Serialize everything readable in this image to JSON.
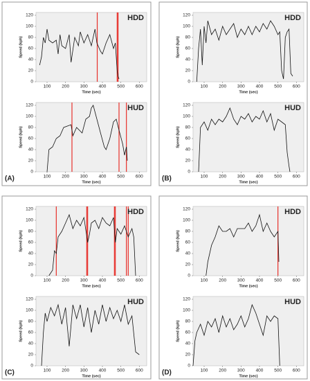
{
  "panel_labels": [
    "(A)",
    "(B)",
    "(C)",
    "(D)"
  ],
  "chart_data": [
    {
      "type": "line",
      "title": "HDD",
      "xlabel": "Time (sec)",
      "ylabel": "Speed (kph)",
      "color": "#111111",
      "vline_color": "#e8302a",
      "x": [
        60,
        70,
        80,
        90,
        100,
        110,
        130,
        150,
        160,
        170,
        180,
        200,
        220,
        230,
        250,
        270,
        280,
        300,
        320,
        340,
        360,
        370,
        390,
        400,
        420,
        440,
        460,
        470,
        480,
        485,
        490
      ],
      "values": [
        30,
        45,
        80,
        70,
        95,
        75,
        70,
        75,
        50,
        85,
        65,
        60,
        85,
        35,
        80,
        65,
        90,
        70,
        85,
        65,
        95,
        70,
        55,
        50,
        70,
        85,
        60,
        70,
        20,
        10,
        5
      ],
      "vlines": [
        372,
        480,
        485
      ],
      "xlim": [
        40,
        640
      ],
      "ylim": [
        0,
        125
      ],
      "xticks": [
        100,
        200,
        300,
        400,
        500,
        600
      ],
      "yticks": [
        0,
        20,
        40,
        60,
        80,
        100,
        120
      ]
    },
    {
      "type": "line",
      "title": "HUD",
      "xlabel": "Time (sec)",
      "ylabel": "Speed (kph)",
      "color": "#111111",
      "vline_color": "#e8302a",
      "x": [
        100,
        110,
        130,
        150,
        170,
        190,
        230,
        240,
        260,
        290,
        310,
        330,
        340,
        350,
        370,
        390,
        410,
        420,
        440,
        460,
        475,
        490,
        510,
        520,
        530,
        535
      ],
      "values": [
        0,
        40,
        45,
        60,
        65,
        80,
        85,
        65,
        80,
        70,
        95,
        100,
        115,
        120,
        95,
        70,
        45,
        40,
        60,
        90,
        95,
        75,
        50,
        30,
        45,
        20
      ],
      "vlines": [
        235,
        490,
        530
      ],
      "xlim": [
        40,
        640
      ],
      "ylim": [
        0,
        125
      ],
      "xticks": [
        100,
        200,
        300,
        400,
        500,
        600
      ],
      "yticks": [
        0,
        20,
        40,
        60,
        80,
        100,
        120
      ]
    },
    {
      "type": "line",
      "title": "HDD",
      "xlabel": "Time (sec)",
      "ylabel": "Speed (kph)",
      "color": "#111111",
      "vline_color": "#e8302a",
      "x": [
        60,
        70,
        80,
        90,
        100,
        110,
        120,
        140,
        160,
        180,
        200,
        220,
        240,
        260,
        280,
        300,
        320,
        340,
        360,
        380,
        400,
        420,
        440,
        460,
        480,
        500,
        510,
        520,
        530,
        540,
        550,
        560,
        570,
        580
      ],
      "values": [
        0,
        60,
        95,
        30,
        100,
        70,
        110,
        85,
        95,
        75,
        100,
        85,
        95,
        105,
        80,
        95,
        85,
        100,
        85,
        100,
        90,
        105,
        95,
        110,
        100,
        85,
        90,
        20,
        5,
        80,
        90,
        95,
        15,
        10
      ],
      "vlines": [],
      "xlim": [
        40,
        640
      ],
      "ylim": [
        0,
        125
      ],
      "xticks": [
        100,
        200,
        300,
        400,
        500,
        600
      ],
      "yticks": [
        0,
        20,
        40,
        60,
        80,
        100,
        120
      ]
    },
    {
      "type": "line",
      "title": "HUD",
      "xlabel": "Time (sec)",
      "ylabel": "Speed (kph)",
      "color": "#111111",
      "vline_color": "#e8302a",
      "x": [
        70,
        80,
        100,
        120,
        140,
        160,
        180,
        200,
        220,
        240,
        260,
        280,
        300,
        320,
        340,
        360,
        380,
        400,
        420,
        440,
        460,
        480,
        500,
        520,
        540,
        550,
        560,
        565
      ],
      "values": [
        0,
        80,
        90,
        75,
        95,
        85,
        95,
        90,
        100,
        115,
        95,
        85,
        100,
        95,
        105,
        90,
        100,
        95,
        110,
        90,
        105,
        75,
        95,
        90,
        85,
        35,
        10,
        0
      ],
      "vlines": [],
      "xlim": [
        40,
        640
      ],
      "ylim": [
        0,
        125
      ],
      "xticks": [
        100,
        200,
        300,
        400,
        500,
        600
      ],
      "yticks": [
        0,
        20,
        40,
        60,
        80,
        100,
        120
      ]
    },
    {
      "type": "line",
      "title": "HDD",
      "xlabel": "Time (sec)",
      "ylabel": "Speed (kph)",
      "color": "#111111",
      "vline_color": "#e8302a",
      "x": [
        110,
        120,
        130,
        140,
        150,
        160,
        180,
        200,
        220,
        240,
        260,
        280,
        300,
        320,
        330,
        340,
        360,
        380,
        400,
        420,
        440,
        460,
        470,
        480,
        500,
        520,
        540,
        560,
        570,
        580
      ],
      "values": [
        0,
        5,
        10,
        45,
        40,
        70,
        80,
        95,
        110,
        85,
        100,
        90,
        105,
        60,
        75,
        95,
        100,
        85,
        105,
        95,
        90,
        105,
        60,
        85,
        75,
        90,
        70,
        85,
        70,
        0
      ],
      "vlines": [
        150,
        315,
        320,
        465,
        470,
        530,
        540
      ],
      "xlim": [
        40,
        640
      ],
      "ylim": [
        0,
        125
      ],
      "xticks": [
        100,
        200,
        300,
        400,
        500,
        600
      ],
      "yticks": [
        0,
        20,
        40,
        60,
        80,
        100,
        120
      ]
    },
    {
      "type": "line",
      "title": "HUD",
      "xlabel": "Time (sec)",
      "ylabel": "Speed (kph)",
      "color": "#111111",
      "vline_color": "#e8302a",
      "x": [
        70,
        80,
        90,
        100,
        120,
        140,
        160,
        180,
        200,
        220,
        240,
        260,
        280,
        300,
        320,
        340,
        360,
        380,
        400,
        420,
        440,
        460,
        480,
        500,
        520,
        540,
        560,
        580,
        600
      ],
      "values": [
        0,
        60,
        95,
        80,
        105,
        90,
        110,
        75,
        105,
        35,
        110,
        85,
        110,
        70,
        105,
        60,
        100,
        75,
        110,
        80,
        105,
        85,
        100,
        80,
        110,
        75,
        90,
        25,
        20
      ],
      "vlines": [],
      "xlim": [
        40,
        640
      ],
      "ylim": [
        0,
        125
      ],
      "xticks": [
        100,
        200,
        300,
        400,
        500,
        600
      ],
      "yticks": [
        0,
        20,
        40,
        60,
        80,
        100,
        120
      ]
    },
    {
      "type": "line",
      "title": "HDD",
      "xlabel": "Time (sec)",
      "ylabel": "Speed (kph)",
      "color": "#111111",
      "vline_color": "#e8302a",
      "x": [
        110,
        120,
        130,
        140,
        160,
        180,
        200,
        220,
        240,
        260,
        280,
        300,
        320,
        340,
        360,
        380,
        400,
        420,
        440,
        460,
        480,
        500,
        505
      ],
      "values": [
        0,
        25,
        40,
        55,
        70,
        90,
        80,
        80,
        85,
        70,
        85,
        85,
        85,
        95,
        80,
        90,
        110,
        80,
        95,
        80,
        70,
        80,
        25
      ],
      "vlines": [
        500
      ],
      "xlim": [
        40,
        640
      ],
      "ylim": [
        0,
        125
      ],
      "xticks": [
        100,
        200,
        300,
        400,
        500,
        600
      ],
      "yticks": [
        0,
        20,
        40,
        60,
        80,
        100,
        120
      ]
    },
    {
      "type": "line",
      "title": "HUD",
      "xlabel": "Time (sec)",
      "ylabel": "Speed (kph)",
      "color": "#111111",
      "vline_color": "#e8302a",
      "x": [
        40,
        50,
        60,
        80,
        100,
        120,
        140,
        160,
        180,
        200,
        220,
        240,
        260,
        280,
        300,
        320,
        340,
        360,
        380,
        400,
        420,
        440,
        460,
        480,
        500,
        510
      ],
      "values": [
        0,
        45,
        60,
        75,
        55,
        80,
        70,
        85,
        60,
        90,
        70,
        85,
        65,
        75,
        90,
        70,
        85,
        110,
        95,
        75,
        55,
        90,
        80,
        90,
        85,
        0
      ],
      "vlines": [],
      "xlim": [
        40,
        640
      ],
      "ylim": [
        0,
        125
      ],
      "xticks": [
        100,
        200,
        300,
        400,
        500,
        600
      ],
      "yticks": [
        0,
        20,
        40,
        60,
        80,
        100,
        120
      ]
    }
  ]
}
